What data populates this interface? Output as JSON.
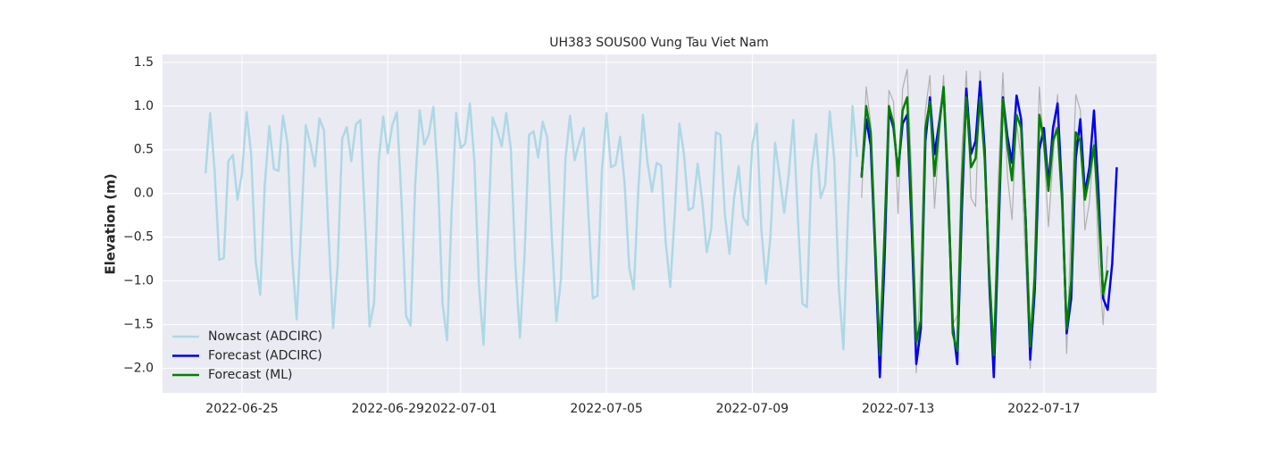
{
  "chart_data": {
    "type": "line",
    "title": "UH383 SOUS00 Vung Tau Viet Nam",
    "y_label": "Elevation (m)",
    "xlim": [
      "2022-06-22 19:40",
      "2022-07-20 02:10"
    ],
    "xticks": [
      "2022-06-25",
      "2022-06-29",
      "2022-07-01",
      "2022-07-05",
      "2022-07-09",
      "2022-07-13",
      "2022-07-17"
    ],
    "ylim": [
      -2.28,
      1.59
    ],
    "yticks": [
      1.5,
      {
        "value": 1,
        "label": "1.0"
      },
      0.5,
      {
        "value": 0,
        "label": "0.0"
      },
      {
        "value": -0.5,
        "label": "−0.5"
      },
      {
        "value": -1,
        "label": "−1.0"
      },
      {
        "value": -1.5,
        "label": "−1.5"
      },
      {
        "value": -2,
        "label": "−2.0"
      }
    ],
    "grid": true,
    "legend": "lower left",
    "series": [
      {
        "name": "Nowcast (ADCIRC)",
        "color": "#add8e6",
        "width": 2.5,
        "x": [
          "2022-06-24 00:00",
          "2022-06-24 03:00",
          "2022-06-24 06:00",
          "2022-06-24 09:00",
          "2022-06-24 12:00",
          "2022-06-24 15:00",
          "2022-06-24 18:00",
          "2022-06-24 21:00",
          "2022-06-25 00:00",
          "2022-06-25 03:00",
          "2022-06-25 06:00",
          "2022-06-25 09:00",
          "2022-06-25 12:00",
          "2022-06-25 15:00",
          "2022-06-25 18:00",
          "2022-06-25 21:00",
          "2022-06-26 00:00",
          "2022-06-26 03:00",
          "2022-06-26 06:00",
          "2022-06-26 09:00",
          "2022-06-26 12:00",
          "2022-06-26 15:00",
          "2022-06-26 18:00",
          "2022-06-26 21:00",
          "2022-06-27 00:00",
          "2022-06-27 03:00",
          "2022-06-27 06:00",
          "2022-06-27 09:00",
          "2022-06-27 12:00",
          "2022-06-27 15:00",
          "2022-06-27 18:00",
          "2022-06-27 21:00",
          "2022-06-28 00:00",
          "2022-06-28 03:00",
          "2022-06-28 06:00",
          "2022-06-28 09:00",
          "2022-06-28 12:00",
          "2022-06-28 15:00",
          "2022-06-28 18:00",
          "2022-06-28 21:00",
          "2022-06-29 00:00",
          "2022-06-29 03:00",
          "2022-06-29 06:00",
          "2022-06-29 09:00",
          "2022-06-29 12:00",
          "2022-06-29 15:00",
          "2022-06-29 18:00",
          "2022-06-29 21:00",
          "2022-06-30 00:00",
          "2022-06-30 03:00",
          "2022-06-30 06:00",
          "2022-06-30 09:00",
          "2022-06-30 12:00",
          "2022-06-30 15:00",
          "2022-06-30 18:00",
          "2022-06-30 21:00",
          "2022-07-01 00:00",
          "2022-07-01 03:00",
          "2022-07-01 06:00",
          "2022-07-01 09:00",
          "2022-07-01 12:00",
          "2022-07-01 15:00",
          "2022-07-01 18:00",
          "2022-07-01 21:00",
          "2022-07-02 00:00",
          "2022-07-02 03:00",
          "2022-07-02 06:00",
          "2022-07-02 09:00",
          "2022-07-02 12:00",
          "2022-07-02 15:00",
          "2022-07-02 18:00",
          "2022-07-02 21:00",
          "2022-07-03 00:00",
          "2022-07-03 03:00",
          "2022-07-03 06:00",
          "2022-07-03 09:00",
          "2022-07-03 12:00",
          "2022-07-03 15:00",
          "2022-07-03 18:00",
          "2022-07-03 21:00",
          "2022-07-04 00:00",
          "2022-07-04 03:00",
          "2022-07-04 06:00",
          "2022-07-04 09:00",
          "2022-07-04 12:00",
          "2022-07-04 15:00",
          "2022-07-04 18:00",
          "2022-07-04 21:00",
          "2022-07-05 00:00",
          "2022-07-05 03:00",
          "2022-07-05 06:00",
          "2022-07-05 09:00",
          "2022-07-05 12:00",
          "2022-07-05 15:00",
          "2022-07-05 18:00",
          "2022-07-05 21:00",
          "2022-07-06 00:00",
          "2022-07-06 03:00",
          "2022-07-06 06:00",
          "2022-07-06 09:00",
          "2022-07-06 12:00",
          "2022-07-06 15:00",
          "2022-07-06 18:00",
          "2022-07-06 21:00",
          "2022-07-07 00:00",
          "2022-07-07 03:00",
          "2022-07-07 06:00",
          "2022-07-07 09:00",
          "2022-07-07 12:00",
          "2022-07-07 15:00",
          "2022-07-07 18:00",
          "2022-07-07 21:00",
          "2022-07-08 00:00",
          "2022-07-08 03:00",
          "2022-07-08 06:00",
          "2022-07-08 09:00",
          "2022-07-08 12:00",
          "2022-07-08 15:00",
          "2022-07-08 18:00",
          "2022-07-08 21:00",
          "2022-07-09 00:00",
          "2022-07-09 03:00",
          "2022-07-09 06:00",
          "2022-07-09 09:00",
          "2022-07-09 12:00",
          "2022-07-09 15:00",
          "2022-07-09 18:00",
          "2022-07-09 21:00",
          "2022-07-10 00:00",
          "2022-07-10 03:00",
          "2022-07-10 06:00",
          "2022-07-10 09:00",
          "2022-07-10 12:00",
          "2022-07-10 15:00",
          "2022-07-10 18:00",
          "2022-07-10 21:00",
          "2022-07-11 00:00",
          "2022-07-11 03:00",
          "2022-07-11 06:00",
          "2022-07-11 09:00",
          "2022-07-11 12:00",
          "2022-07-11 15:00",
          "2022-07-11 18:00",
          "2022-07-11 21:00"
        ],
        "values": [
          0.23,
          0.92,
          0.25,
          -0.76,
          -0.74,
          0.37,
          0.44,
          -0.07,
          0.23,
          0.93,
          0.45,
          -0.78,
          -1.16,
          0.1,
          0.77,
          0.28,
          0.26,
          0.89,
          0.57,
          -0.72,
          -1.44,
          -0.37,
          0.78,
          0.57,
          0.31,
          0.86,
          0.72,
          -0.46,
          -1.54,
          -0.83,
          0.63,
          0.76,
          0.37,
          0.79,
          0.84,
          -0.3,
          -1.52,
          -1.25,
          0.37,
          0.88,
          0.46,
          0.78,
          0.93,
          -0.08,
          -1.4,
          -1.51,
          0.1,
          0.95,
          0.56,
          0.68,
          0.99,
          0.18,
          -1.25,
          -1.68,
          -0.2,
          0.92,
          0.52,
          0.57,
          1.03,
          0.37,
          -1.05,
          -1.73,
          -0.45,
          0.87,
          0.72,
          0.54,
          0.92,
          0.51,
          -0.81,
          -1.65,
          -0.72,
          0.67,
          0.71,
          0.41,
          0.82,
          0.64,
          -0.5,
          -1.46,
          -0.98,
          0.4,
          0.89,
          0.38,
          0.58,
          0.75,
          -0.2,
          -1.2,
          -1.17,
          0.26,
          0.92,
          0.3,
          0.33,
          0.65,
          0.1,
          -0.85,
          -1.1,
          0.05,
          0.9,
          0.36,
          0.02,
          0.35,
          0.32,
          -0.55,
          -1.07,
          -0.23,
          0.8,
          0.45,
          -0.19,
          -0.16,
          0.34,
          -0.08,
          -0.67,
          -0.4,
          0.7,
          0.67,
          -0.25,
          -0.69,
          -0.05,
          0.31,
          -0.27,
          -0.36,
          0.56,
          0.8,
          -0.42,
          -1.03,
          -0.48,
          0.58,
          0.2,
          -0.22,
          0.22,
          0.84,
          -0.28,
          -1.26,
          -1.3,
          0.27,
          0.68,
          -0.05,
          0.1,
          0.94,
          0.39,
          -1.08,
          -1.78,
          -0.25,
          1.0,
          0.42
        ]
      },
      {
        "color": "#b0b0b0",
        "width": 1.2,
        "x": [
          "2022-07-12 00:00",
          "2022-07-12 03:00",
          "2022-07-12 06:00",
          "2022-07-12 09:00",
          "2022-07-12 12:00",
          "2022-07-12 15:00",
          "2022-07-12 18:00",
          "2022-07-12 21:00",
          "2022-07-13 00:00",
          "2022-07-13 03:00",
          "2022-07-13 06:00",
          "2022-07-13 09:00",
          "2022-07-13 12:00",
          "2022-07-13 15:00",
          "2022-07-13 18:00",
          "2022-07-13 21:00",
          "2022-07-14 00:00",
          "2022-07-14 03:00",
          "2022-07-14 06:00",
          "2022-07-14 09:00",
          "2022-07-14 12:00",
          "2022-07-14 15:00",
          "2022-07-14 18:00",
          "2022-07-14 21:00",
          "2022-07-15 00:00",
          "2022-07-15 03:00",
          "2022-07-15 06:00",
          "2022-07-15 09:00",
          "2022-07-15 12:00",
          "2022-07-15 15:00",
          "2022-07-15 18:00",
          "2022-07-15 21:00",
          "2022-07-16 00:00",
          "2022-07-16 03:00",
          "2022-07-16 06:00",
          "2022-07-16 09:00",
          "2022-07-16 12:00",
          "2022-07-16 15:00",
          "2022-07-16 18:00",
          "2022-07-16 21:00",
          "2022-07-17 00:00",
          "2022-07-17 03:00",
          "2022-07-17 06:00",
          "2022-07-17 09:00",
          "2022-07-17 12:00",
          "2022-07-17 15:00",
          "2022-07-17 18:00",
          "2022-07-17 21:00",
          "2022-07-18 00:00",
          "2022-07-18 03:00",
          "2022-07-18 06:00",
          "2022-07-18 09:00",
          "2022-07-18 12:00",
          "2022-07-18 15:00",
          "2022-07-18 18:00"
        ],
        "values": [
          -0.05,
          1.22,
          0.8,
          -1.0,
          -2.0,
          -0.4,
          1.18,
          1.05,
          -0.23,
          1.2,
          1.42,
          0.2,
          -2.05,
          -0.8,
          0.95,
          1.35,
          -0.17,
          0.6,
          1.35,
          -0.3,
          -1.5,
          -1.4,
          0.5,
          1.4,
          -0.05,
          -0.15,
          1.4,
          0.4,
          -1.2,
          -1.9,
          0.2,
          1.38,
          0.2,
          -0.3,
          0.8,
          0.4,
          -0.8,
          -2.0,
          -0.6,
          1.22,
          0.5,
          -0.38,
          0.4,
          1.13,
          -0.2,
          -1.83,
          -0.3,
          1.13,
          0.95,
          -0.42,
          -0.1,
          0.6,
          -0.75,
          -1.5,
          -0.6
        ]
      },
      {
        "name": "Forecast (ADCIRC)",
        "color": "#0000ee",
        "width": 2.5,
        "x": [
          "2022-07-12 00:00",
          "2022-07-12 03:00",
          "2022-07-12 06:00",
          "2022-07-12 09:00",
          "2022-07-12 12:00",
          "2022-07-12 15:00",
          "2022-07-12 18:00",
          "2022-07-12 21:00",
          "2022-07-13 00:00",
          "2022-07-13 03:00",
          "2022-07-13 06:00",
          "2022-07-13 09:00",
          "2022-07-13 12:00",
          "2022-07-13 15:00",
          "2022-07-13 18:00",
          "2022-07-13 21:00",
          "2022-07-14 00:00",
          "2022-07-14 03:00",
          "2022-07-14 06:00",
          "2022-07-14 09:00",
          "2022-07-14 12:00",
          "2022-07-14 15:00",
          "2022-07-14 18:00",
          "2022-07-14 21:00",
          "2022-07-15 00:00",
          "2022-07-15 03:00",
          "2022-07-15 06:00",
          "2022-07-15 09:00",
          "2022-07-15 12:00",
          "2022-07-15 15:00",
          "2022-07-15 18:00",
          "2022-07-15 21:00",
          "2022-07-16 00:00",
          "2022-07-16 03:00",
          "2022-07-16 06:00",
          "2022-07-16 09:00",
          "2022-07-16 12:00",
          "2022-07-16 15:00",
          "2022-07-16 18:00",
          "2022-07-16 21:00",
          "2022-07-17 00:00",
          "2022-07-17 03:00",
          "2022-07-17 06:00",
          "2022-07-17 09:00",
          "2022-07-17 12:00",
          "2022-07-17 15:00",
          "2022-07-17 18:00",
          "2022-07-17 21:00",
          "2022-07-18 00:00",
          "2022-07-18 03:00",
          "2022-07-18 06:00",
          "2022-07-18 09:00",
          "2022-07-18 12:00",
          "2022-07-18 15:00",
          "2022-07-18 18:00",
          "2022-07-18 21:00",
          "2022-07-19 00:00"
        ],
        "values": [
          0.2,
          0.85,
          0.55,
          -0.7,
          -2.1,
          -0.8,
          0.95,
          0.75,
          0.25,
          0.8,
          0.9,
          -0.4,
          -1.95,
          -1.55,
          0.6,
          1.1,
          0.45,
          0.8,
          1.2,
          0.0,
          -1.5,
          -1.95,
          -0.2,
          1.2,
          0.45,
          0.6,
          1.28,
          0.5,
          -1.0,
          -2.1,
          -0.5,
          1.1,
          0.65,
          0.35,
          1.12,
          0.85,
          -0.3,
          -1.9,
          -1.1,
          0.5,
          0.75,
          0.1,
          0.75,
          1.03,
          0.0,
          -1.6,
          -1.2,
          0.4,
          0.85,
          0.0,
          0.3,
          0.95,
          0.0,
          -1.2,
          -1.33,
          -0.8,
          0.3
        ]
      },
      {
        "name": "Forecast (ML)",
        "color": "#008000",
        "width": 2.5,
        "x": [
          "2022-07-12 00:00",
          "2022-07-12 03:00",
          "2022-07-12 06:00",
          "2022-07-12 09:00",
          "2022-07-12 12:00",
          "2022-07-12 15:00",
          "2022-07-12 18:00",
          "2022-07-12 21:00",
          "2022-07-13 00:00",
          "2022-07-13 03:00",
          "2022-07-13 06:00",
          "2022-07-13 09:00",
          "2022-07-13 12:00",
          "2022-07-13 15:00",
          "2022-07-13 18:00",
          "2022-07-13 21:00",
          "2022-07-14 00:00",
          "2022-07-14 03:00",
          "2022-07-14 06:00",
          "2022-07-14 09:00",
          "2022-07-14 12:00",
          "2022-07-14 15:00",
          "2022-07-14 18:00",
          "2022-07-14 21:00",
          "2022-07-15 00:00",
          "2022-07-15 03:00",
          "2022-07-15 06:00",
          "2022-07-15 09:00",
          "2022-07-15 12:00",
          "2022-07-15 15:00",
          "2022-07-15 18:00",
          "2022-07-15 21:00",
          "2022-07-16 00:00",
          "2022-07-16 03:00",
          "2022-07-16 06:00",
          "2022-07-16 09:00",
          "2022-07-16 12:00",
          "2022-07-16 15:00",
          "2022-07-16 18:00",
          "2022-07-16 21:00",
          "2022-07-17 00:00",
          "2022-07-17 03:00",
          "2022-07-17 06:00",
          "2022-07-17 09:00",
          "2022-07-17 12:00",
          "2022-07-17 15:00",
          "2022-07-17 18:00",
          "2022-07-17 21:00",
          "2022-07-18 00:00",
          "2022-07-18 03:00",
          "2022-07-18 06:00",
          "2022-07-18 09:00",
          "2022-07-18 12:00",
          "2022-07-18 15:00",
          "2022-07-18 18:00"
        ],
        "values": [
          0.18,
          1.0,
          0.7,
          -0.6,
          -1.85,
          -0.5,
          1.0,
          0.8,
          0.2,
          0.95,
          1.1,
          -0.2,
          -1.7,
          -1.45,
          0.75,
          1.05,
          0.2,
          0.75,
          1.22,
          0.1,
          -1.6,
          -1.8,
          0.1,
          1.1,
          0.3,
          0.4,
          1.1,
          0.4,
          -0.9,
          -1.85,
          -0.3,
          1.08,
          0.55,
          0.15,
          0.9,
          0.75,
          -0.3,
          -1.75,
          -0.95,
          0.9,
          0.6,
          0.03,
          0.6,
          0.75,
          -0.1,
          -1.55,
          -1.0,
          0.7,
          0.6,
          -0.07,
          0.2,
          0.55,
          -0.2,
          -1.15,
          -0.88
        ]
      }
    ]
  }
}
